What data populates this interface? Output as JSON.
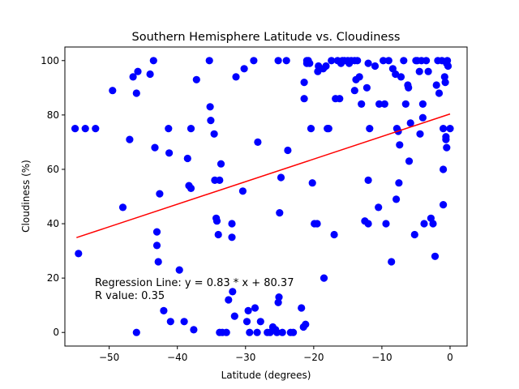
{
  "chart_data": {
    "type": "scatter",
    "title": "Southern Hemisphere Latitude vs. Cloudiness",
    "xlabel": "Latitude (degrees)",
    "ylabel": "Cloudiness (%)",
    "xlim": [
      -56.5,
      2.5
    ],
    "ylim": [
      -5,
      105
    ],
    "xticks": [
      -50,
      -40,
      -30,
      -20,
      -10,
      0
    ],
    "yticks": [
      0,
      20,
      40,
      60,
      80,
      100
    ],
    "xtick_labels": [
      "−50",
      "−40",
      "−30",
      "−20",
      "−10",
      "0"
    ],
    "ytick_labels": [
      "0",
      "20",
      "40",
      "60",
      "80",
      "100"
    ],
    "grid": false,
    "point_color": "#0000ff",
    "regression_color": "#ff0000",
    "regression": {
      "slope": 0.83,
      "intercept": 80.37,
      "x_range": [
        -54.8,
        0
      ]
    },
    "annotations": [
      "Regression Line: y = 0.83 * x + 80.37",
      "R value: 0.35"
    ],
    "points": [
      [
        -55.0,
        75
      ],
      [
        -53.5,
        75
      ],
      [
        -52.0,
        75
      ],
      [
        -54.5,
        29
      ],
      [
        -49.5,
        89
      ],
      [
        -48.0,
        46
      ],
      [
        -47.0,
        71
      ],
      [
        -46.5,
        94
      ],
      [
        -46.0,
        88
      ],
      [
        -45.8,
        96
      ],
      [
        -46.0,
        0
      ],
      [
        -44.0,
        95
      ],
      [
        -43.5,
        100
      ],
      [
        -43.3,
        68
      ],
      [
        -43.0,
        37
      ],
      [
        -43.0,
        32
      ],
      [
        -42.8,
        26
      ],
      [
        -42.6,
        51
      ],
      [
        -42.0,
        8
      ],
      [
        -41.3,
        75
      ],
      [
        -41.2,
        66
      ],
      [
        -41.0,
        4
      ],
      [
        -39.7,
        23
      ],
      [
        -39.0,
        4
      ],
      [
        -38.5,
        64
      ],
      [
        -38.3,
        54
      ],
      [
        -38.0,
        75
      ],
      [
        -38.0,
        53
      ],
      [
        -37.6,
        1
      ],
      [
        -37.2,
        93
      ],
      [
        -35.3,
        100
      ],
      [
        -35.2,
        83
      ],
      [
        -35.1,
        78
      ],
      [
        -34.6,
        73
      ],
      [
        -34.5,
        56
      ],
      [
        -34.3,
        42
      ],
      [
        -34.2,
        41
      ],
      [
        -34.0,
        36
      ],
      [
        -33.8,
        56
      ],
      [
        -33.6,
        62
      ],
      [
        -33.8,
        0
      ],
      [
        -33.4,
        0
      ],
      [
        -32.8,
        0
      ],
      [
        -32.5,
        12
      ],
      [
        -32.0,
        40
      ],
      [
        -32.0,
        35
      ],
      [
        -31.9,
        15
      ],
      [
        -31.6,
        6
      ],
      [
        -31.4,
        94
      ],
      [
        -30.4,
        52
      ],
      [
        -30.2,
        97
      ],
      [
        -29.8,
        4
      ],
      [
        -29.6,
        8
      ],
      [
        -29.4,
        0
      ],
      [
        -28.8,
        100
      ],
      [
        -28.6,
        9
      ],
      [
        -28.2,
        70
      ],
      [
        -28.3,
        0
      ],
      [
        -27.8,
        4
      ],
      [
        -26.8,
        0
      ],
      [
        -26.4,
        0
      ],
      [
        -26.0,
        2
      ],
      [
        -25.6,
        1
      ],
      [
        -25.4,
        0
      ],
      [
        -25.2,
        100
      ],
      [
        -25.2,
        11
      ],
      [
        -25.1,
        13
      ],
      [
        -25.0,
        44
      ],
      [
        -24.8,
        57
      ],
      [
        -24.6,
        0
      ],
      [
        -24.0,
        100
      ],
      [
        -23.8,
        67
      ],
      [
        -23.4,
        0
      ],
      [
        -23.0,
        0
      ],
      [
        -21.8,
        9
      ],
      [
        -21.5,
        2
      ],
      [
        -21.4,
        86
      ],
      [
        -21.4,
        92
      ],
      [
        -21.2,
        3
      ],
      [
        -21.0,
        99
      ],
      [
        -21.0,
        100
      ],
      [
        -20.8,
        100
      ],
      [
        -20.6,
        99
      ],
      [
        -20.4,
        75
      ],
      [
        -20.2,
        55
      ],
      [
        -19.9,
        40
      ],
      [
        -19.5,
        40
      ],
      [
        -19.4,
        96
      ],
      [
        -19.3,
        98
      ],
      [
        -18.6,
        97
      ],
      [
        -18.5,
        20
      ],
      [
        -18.2,
        98
      ],
      [
        -18.0,
        75
      ],
      [
        -17.8,
        75
      ],
      [
        -17.4,
        100
      ],
      [
        -17.0,
        36
      ],
      [
        -16.8,
        86
      ],
      [
        -16.5,
        100
      ],
      [
        -16.2,
        86
      ],
      [
        -16.0,
        99
      ],
      [
        -15.8,
        100
      ],
      [
        -15.5,
        100
      ],
      [
        -15.0,
        100
      ],
      [
        -14.8,
        99
      ],
      [
        -14.5,
        100
      ],
      [
        -14.0,
        100
      ],
      [
        -14.0,
        89
      ],
      [
        -13.8,
        93
      ],
      [
        -13.6,
        100
      ],
      [
        -13.3,
        94
      ],
      [
        -13.0,
        84
      ],
      [
        -12.5,
        41
      ],
      [
        -12.2,
        90
      ],
      [
        -12.0,
        99
      ],
      [
        -12.0,
        56
      ],
      [
        -12.0,
        40
      ],
      [
        -11.8,
        75
      ],
      [
        -11.0,
        98
      ],
      [
        -10.5,
        46
      ],
      [
        -10.4,
        84
      ],
      [
        -9.8,
        100
      ],
      [
        -9.6,
        84
      ],
      [
        -9.4,
        40
      ],
      [
        -9.0,
        100
      ],
      [
        -8.6,
        26
      ],
      [
        -8.4,
        97
      ],
      [
        -8.0,
        95
      ],
      [
        -7.9,
        49
      ],
      [
        -7.8,
        75
      ],
      [
        -7.6,
        74
      ],
      [
        -7.5,
        55
      ],
      [
        -7.4,
        69
      ],
      [
        -7.2,
        94
      ],
      [
        -6.8,
        100
      ],
      [
        -6.5,
        84
      ],
      [
        -6.2,
        91
      ],
      [
        -6.1,
        90
      ],
      [
        -6.0,
        63
      ],
      [
        -5.8,
        77
      ],
      [
        -5.2,
        36
      ],
      [
        -5.0,
        100
      ],
      [
        -4.8,
        100
      ],
      [
        -4.5,
        96
      ],
      [
        -4.4,
        73
      ],
      [
        -4.2,
        100
      ],
      [
        -4.0,
        79
      ],
      [
        -4.0,
        84
      ],
      [
        -3.8,
        40
      ],
      [
        -3.5,
        100
      ],
      [
        -3.2,
        96
      ],
      [
        -2.8,
        42
      ],
      [
        -2.5,
        40
      ],
      [
        -2.2,
        28
      ],
      [
        -2.0,
        91
      ],
      [
        -1.8,
        100
      ],
      [
        -1.6,
        88
      ],
      [
        -1.2,
        100
      ],
      [
        -1.0,
        75
      ],
      [
        -1.0,
        60
      ],
      [
        -1.0,
        47
      ],
      [
        -0.8,
        94
      ],
      [
        -0.7,
        92
      ],
      [
        -0.6,
        72
      ],
      [
        -0.6,
        71
      ],
      [
        -0.5,
        68
      ],
      [
        -0.5,
        99
      ],
      [
        -0.4,
        100
      ],
      [
        -0.3,
        98
      ],
      [
        0.0,
        75
      ]
    ]
  }
}
